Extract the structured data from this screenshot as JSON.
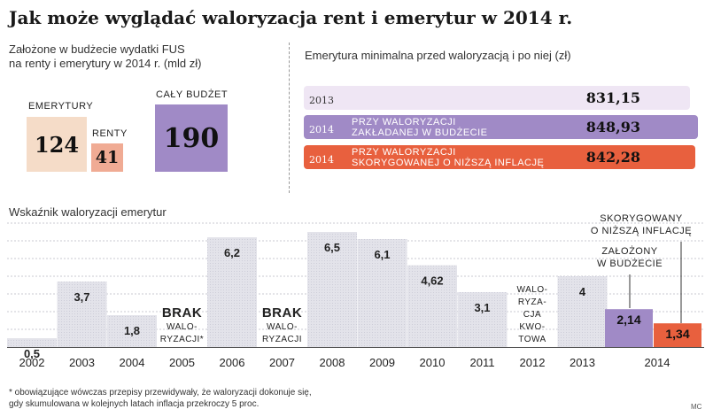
{
  "title": "Jak może wyglądać waloryzacja rent i emerytur w 2014 r.",
  "budget": {
    "subtitle_line1": "Założone w budżecie wydatki  FUS",
    "subtitle_line2": "na renty i emerytury w 2014 r. (mld zł)",
    "emerytury_label": "EMERYTURY",
    "emerytury_value": "124",
    "renty_label": "RENTY",
    "renty_value": "41",
    "budzet_label": "CAŁY BUDŻET",
    "budzet_value": "190"
  },
  "minimal": {
    "subtitle": "Emerytura minimalna przed waloryzacją i po niej (zł)",
    "rows": [
      {
        "year": "2013",
        "label1": "",
        "label2": "",
        "value": "831,15",
        "num": 831.15,
        "color": "#efe6f4"
      },
      {
        "year": "2014",
        "label1": "PRZY WALORYZACJI",
        "label2": "ZAKŁADANEJ W BUDŻECIE",
        "value": "848,93",
        "num": 848.93,
        "color": "#a08ac6"
      },
      {
        "year": "2014",
        "label1": "PRZY WALORYZACJI",
        "label2": "SKORYGOWANEJ O NIŻSZĄ INFLACJĘ",
        "value": "842,28",
        "num": 842.28,
        "color": "#e8603e"
      }
    ]
  },
  "chart_data": {
    "type": "bar",
    "title": "Wskaźnik waloryzacji emerytur",
    "categories": [
      "2002",
      "2003",
      "2004",
      "2005",
      "2006",
      "2007",
      "2008",
      "2009",
      "2010",
      "2011",
      "2012",
      "2013",
      "2014"
    ],
    "values": [
      0.5,
      3.7,
      1.8,
      null,
      6.2,
      null,
      6.5,
      6.1,
      4.62,
      3.1,
      null,
      4,
      null
    ],
    "labels": [
      "0,5",
      "3,7",
      "1,8",
      "",
      "6,2",
      "",
      "6,5",
      "6,1",
      "4,62",
      "3,1",
      "",
      "4",
      ""
    ],
    "special": [
      {
        "year": "2005",
        "text": [
          "BRAK",
          "WALO-",
          "RYZACJI*"
        ]
      },
      {
        "year": "2007",
        "text": [
          "BRAK",
          "WALO-",
          "RYZACJI"
        ]
      },
      {
        "year": "2012",
        "text": [
          "WALO-",
          "RYZA-",
          "CJA",
          "KWO-",
          "TOWA"
        ]
      }
    ],
    "series_2014": [
      {
        "name": "ZAŁOŻONY W BUDŻECIE",
        "value": 2.14,
        "label": "2,14",
        "color": "#a08ac6"
      },
      {
        "name": "SKORYGOWANY O NIŻSZĄ INFLACJĘ",
        "value": 1.34,
        "label": "1,34",
        "color": "#e8603e"
      }
    ],
    "ann_korygowany": [
      "SKORYGOWANY",
      "O NIŻSZĄ INFLACJĘ"
    ],
    "ann_zalozony": [
      "ZAŁOŻONY",
      "W BUDŻECIE"
    ],
    "ylim": [
      0,
      7
    ],
    "bar_color": "#e7e7ec",
    "grid": true
  },
  "footnote_line1": "* obowiązujące wówczas przepisy przewidywały, że waloryzacji dokonuje się,",
  "footnote_line2": "gdy skumulowana w kolejnych latach inflacja przekroczy 5 proc.",
  "credit": "MC"
}
